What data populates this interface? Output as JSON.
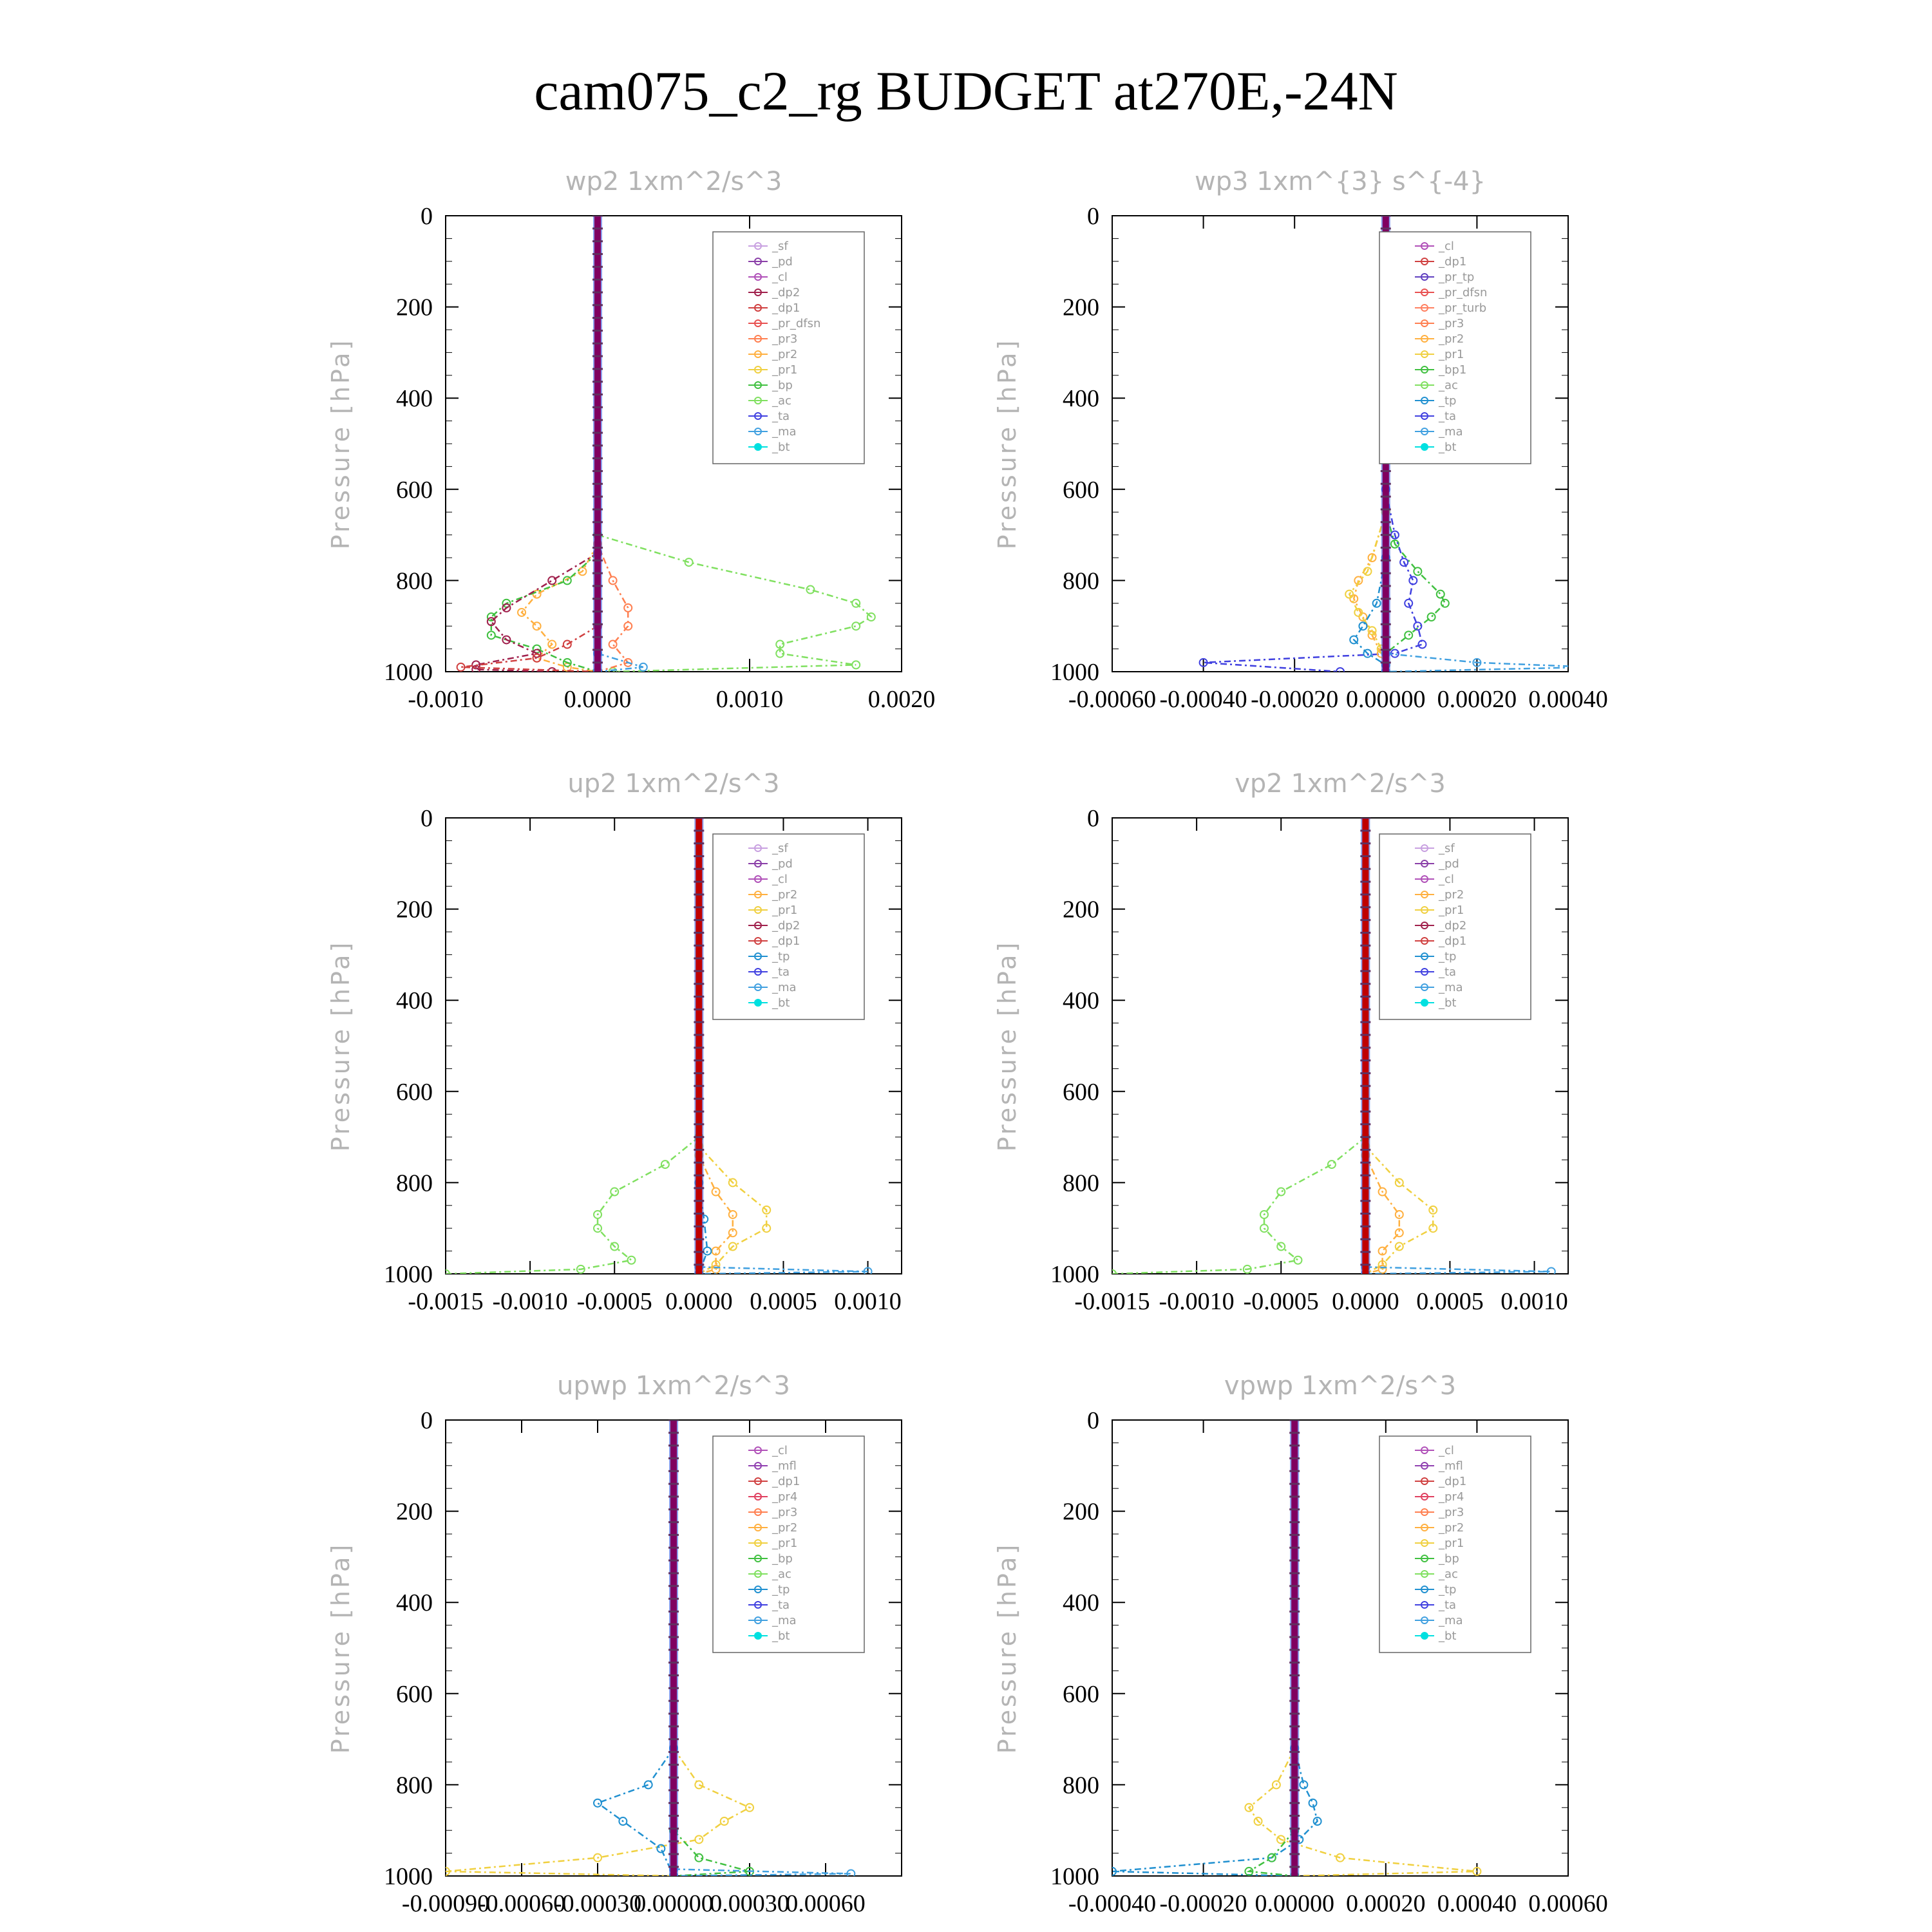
{
  "title": "cam075_c2_rg  BUDGET at270E,-24N",
  "colors": {
    "sf": "#c8a0e0",
    "pd": "#8a3fa8",
    "cl": "#b050b8",
    "dp2": "#a0204c",
    "dp1": "#d04040",
    "pr_dfsn": "#e85050",
    "pr3": "#ff7f50",
    "pr2": "#ffb040",
    "pr1": "#f0d040",
    "bp": "#40c040",
    "ac": "#80e060",
    "tp": "#2090d0",
    "ta": "#4040e0",
    "ma": "#40a0e0",
    "bt": "#00e0e0",
    "mfl": "#9040b0",
    "pr4": "#e04060",
    "pr_tp": "#6040c0",
    "pr_turb": "#ff8060",
    "bp1": "#40c040",
    "thick_line": "#800060",
    "thick_line_red": "#c00000"
  },
  "chart_data": [
    {
      "type": "line",
      "title": "wp2   1xm^2/s^3",
      "ylabel": "Pressure [hPa]",
      "ylim": [
        1000,
        0
      ],
      "xlim": [
        -0.001,
        0.002
      ],
      "x_ticks": [
        "-0.0010",
        "0.0000",
        "0.0010",
        "0.0020"
      ],
      "x_tick_values": [
        -0.001,
        0.0,
        0.001,
        0.002
      ],
      "y_ticks": [
        "0",
        "200",
        "400",
        "600",
        "800",
        "1000"
      ],
      "legend": [
        "_sf",
        "_pd",
        "_cl",
        "_dp2",
        "_dp1",
        "_pr_dfsn",
        "_pr3",
        "_pr2",
        "_pr1",
        "_bp",
        "_ac",
        "_ta",
        "_ma",
        "_bt"
      ],
      "series": [
        {
          "name": "_ac",
          "color_key": "ac",
          "p": [
            700,
            760,
            820,
            850,
            880,
            900,
            940,
            960,
            985,
            1000
          ],
          "x": [
            0.0,
            0.0006,
            0.0014,
            0.0017,
            0.0018,
            0.0017,
            0.0012,
            0.0012,
            0.0017,
            0.0001
          ]
        },
        {
          "name": "_pr2",
          "color_key": "pr2",
          "p": [
            720,
            780,
            830,
            870,
            900,
            940,
            970,
            990,
            1000
          ],
          "x": [
            0.0,
            -0.0001,
            -0.0004,
            -0.0005,
            -0.0004,
            -0.0003,
            -0.0004,
            -0.0002,
            0.0
          ]
        },
        {
          "name": "_pr3",
          "color_key": "pr3",
          "p": [
            720,
            800,
            860,
            900,
            940,
            980,
            1000
          ],
          "x": [
            0.0,
            0.0001,
            0.0002,
            0.0002,
            0.0001,
            0.0002,
            0.0
          ]
        },
        {
          "name": "_bp",
          "color_key": "bp",
          "p": [
            740,
            800,
            850,
            880,
            920,
            950,
            980,
            1000
          ],
          "x": [
            0.0,
            -0.0002,
            -0.0006,
            -0.0007,
            -0.0007,
            -0.0004,
            -0.0002,
            0.0
          ]
        },
        {
          "name": "_dp2",
          "color_key": "dp2",
          "p": [
            740,
            800,
            860,
            890,
            930,
            960,
            985,
            995,
            1000
          ],
          "x": [
            0.0,
            -0.0003,
            -0.0006,
            -0.0007,
            -0.0006,
            -0.0004,
            -0.0008,
            -0.0008,
            -0.0003
          ]
        },
        {
          "name": "_dp1",
          "color_key": "dp1",
          "p": [
            900,
            940,
            970,
            990,
            1000
          ],
          "x": [
            0.0,
            -0.0002,
            -0.0004,
            -0.0009,
            0.0
          ]
        },
        {
          "name": "_ma",
          "color_key": "ma",
          "p": [
            960,
            990,
            1000
          ],
          "x": [
            0.0,
            0.0003,
            0.0
          ]
        }
      ],
      "thick_x": 0.0,
      "thick_color_key": "thick_line"
    },
    {
      "type": "line",
      "title": "wp3   1xm^{3} s^{-4}",
      "ylabel": "Pressure [hPa]",
      "ylim": [
        1000,
        0
      ],
      "xlim": [
        -0.0006,
        0.0004
      ],
      "x_ticks": [
        "-0.00060",
        "-0.00040",
        "-0.00020",
        "0.00000",
        "0.00020",
        "0.00040"
      ],
      "x_tick_values": [
        -0.0006,
        -0.0004,
        -0.0002,
        0.0,
        0.0002,
        0.0004
      ],
      "y_ticks": [
        "0",
        "200",
        "400",
        "600",
        "800",
        "1000"
      ],
      "legend": [
        "_cl",
        "_dp1",
        "_pr_tp",
        "_pr_dfsn",
        "_pr_turb",
        "_pr3",
        "_pr2",
        "_pr1",
        "_bp1",
        "_ac",
        "_tp",
        "_ta",
        "_ma",
        "_bt"
      ],
      "series": [
        {
          "name": "_bp1",
          "color_key": "bp1",
          "p": [
            650,
            720,
            780,
            830,
            850,
            880,
            920,
            960,
            1000
          ],
          "x": [
            0.0,
            2e-05,
            7e-05,
            0.00012,
            0.00013,
            0.0001,
            5e-05,
            0.0,
            0.0
          ]
        },
        {
          "name": "_ta",
          "color_key": "ta",
          "p": [
            600,
            700,
            760,
            800,
            850,
            900,
            940,
            960,
            980,
            1000
          ],
          "x": [
            0.0,
            2e-05,
            4e-05,
            6e-05,
            5e-05,
            7e-05,
            8e-05,
            2e-05,
            -0.0004,
            -0.0001
          ]
        },
        {
          "name": "_pr2",
          "color_key": "pr2",
          "p": [
            650,
            750,
            800,
            840,
            880,
            920,
            960,
            1000
          ],
          "x": [
            0.0,
            -3e-05,
            -6e-05,
            -7e-05,
            -5e-05,
            -3e-05,
            -1e-05,
            0.0
          ]
        },
        {
          "name": "_pr1",
          "color_key": "pr1",
          "p": [
            650,
            780,
            830,
            870,
            910,
            950,
            1000
          ],
          "x": [
            0.0,
            -4e-05,
            -8e-05,
            -6e-05,
            -3e-05,
            -1e-05,
            0.0
          ]
        },
        {
          "name": "_tp",
          "color_key": "tp",
          "p": [
            750,
            850,
            900,
            930,
            960,
            985,
            1000
          ],
          "x": [
            0.0,
            -2e-05,
            -5e-05,
            -7e-05,
            -4e-05,
            0.0,
            0.0
          ]
        },
        {
          "name": "_ma",
          "color_key": "ma",
          "p": [
            960,
            980,
            990,
            1000
          ],
          "x": [
            0.0,
            0.0002,
            0.00045,
            0.0
          ]
        }
      ],
      "thick_x": 0.0,
      "thick_color_key": "thick_line"
    },
    {
      "type": "line",
      "title": "up2   1xm^2/s^3",
      "ylabel": "Pressure [hPa]",
      "ylim": [
        1000,
        0
      ],
      "xlim": [
        -0.0015,
        0.0012
      ],
      "x_ticks": [
        "-0.0015",
        "-0.0010",
        "-0.0005",
        "0.0000",
        "0.0005",
        "0.0010"
      ],
      "x_tick_values": [
        -0.0015,
        -0.001,
        -0.0005,
        0.0,
        0.0005,
        0.001
      ],
      "y_ticks": [
        "0",
        "200",
        "400",
        "600",
        "800",
        "1000"
      ],
      "legend": [
        "_sf",
        "_pd",
        "_cl",
        "_pr2",
        "_pr1",
        "_dp2",
        "_dp1",
        "_tp",
        "_ta",
        "_ma",
        "_bt"
      ],
      "series": [
        {
          "name": "_dp1",
          "color_key": "ac",
          "p": [
            700,
            760,
            820,
            870,
            900,
            940,
            970,
            990,
            1000
          ],
          "x": [
            0.0,
            -0.0002,
            -0.0005,
            -0.0006,
            -0.0006,
            -0.0005,
            -0.0004,
            -0.0007,
            -0.0015
          ]
        },
        {
          "name": "_pr1",
          "color_key": "pr1",
          "p": [
            720,
            800,
            860,
            900,
            940,
            980,
            1000
          ],
          "x": [
            0.0,
            0.0002,
            0.0004,
            0.0004,
            0.0002,
            0.0001,
            0.0
          ]
        },
        {
          "name": "_pr2",
          "color_key": "pr2",
          "p": [
            740,
            820,
            870,
            910,
            950,
            990,
            1000
          ],
          "x": [
            0.0,
            0.0001,
            0.0002,
            0.0002,
            0.0001,
            0.0001,
            0.0
          ]
        },
        {
          "name": "_tp",
          "color_key": "tp",
          "p": [
            800,
            880,
            950,
            1000
          ],
          "x": [
            0.0,
            3e-05,
            5e-05,
            0.0
          ]
        },
        {
          "name": "_ma",
          "color_key": "ma",
          "p": [
            985,
            995,
            1000
          ],
          "x": [
            0.0,
            0.001,
            0.0
          ]
        }
      ],
      "thick_x": 0.0,
      "thick_color_key": "thick_line_red"
    },
    {
      "type": "line",
      "title": "vp2   1xm^2/s^3",
      "ylabel": "Pressure [hPa]",
      "ylim": [
        1000,
        0
      ],
      "xlim": [
        -0.0015,
        0.0012
      ],
      "x_ticks": [
        "-0.0015",
        "-0.0010",
        "-0.0005",
        "0.0000",
        "0.0005",
        "0.0010"
      ],
      "x_tick_values": [
        -0.0015,
        -0.001,
        -0.0005,
        0.0,
        0.0005,
        0.001
      ],
      "y_ticks": [
        "0",
        "200",
        "400",
        "600",
        "800",
        "1000"
      ],
      "legend": [
        "_sf",
        "_pd",
        "_cl",
        "_pr2",
        "_pr1",
        "_dp2",
        "_dp1",
        "_tp",
        "_ta",
        "_ma",
        "_bt"
      ],
      "series": [
        {
          "name": "_dp1",
          "color_key": "ac",
          "p": [
            700,
            760,
            820,
            870,
            900,
            940,
            970,
            990,
            1000
          ],
          "x": [
            0.0,
            -0.0002,
            -0.0005,
            -0.0006,
            -0.0006,
            -0.0005,
            -0.0004,
            -0.0007,
            -0.0015
          ]
        },
        {
          "name": "_pr1",
          "color_key": "pr1",
          "p": [
            720,
            800,
            860,
            900,
            940,
            980,
            1000
          ],
          "x": [
            0.0,
            0.0002,
            0.0004,
            0.0004,
            0.0002,
            0.0001,
            0.0
          ]
        },
        {
          "name": "_pr2",
          "color_key": "pr2",
          "p": [
            740,
            820,
            870,
            910,
            950,
            990,
            1000
          ],
          "x": [
            0.0,
            0.0001,
            0.0002,
            0.0002,
            0.0001,
            0.0001,
            0.0
          ]
        },
        {
          "name": "_ma",
          "color_key": "ma",
          "p": [
            985,
            995,
            1000
          ],
          "x": [
            0.0,
            0.0011,
            0.0
          ]
        }
      ],
      "thick_x": 0.0,
      "thick_color_key": "thick_line_red"
    },
    {
      "type": "line",
      "title": "upwp   1xm^2/s^3",
      "ylabel": "Pressure [hPa]",
      "ylim": [
        1000,
        0
      ],
      "xlim": [
        -0.0009,
        0.0009
      ],
      "x_ticks": [
        "-0.00090",
        "-0.00060",
        "-0.00030",
        "0.00000",
        "0.00030",
        "0.00060"
      ],
      "x_tick_values": [
        -0.0009,
        -0.0006,
        -0.0003,
        0.0,
        0.0003,
        0.0006
      ],
      "y_ticks": [
        "0",
        "200",
        "400",
        "600",
        "800",
        "1000"
      ],
      "legend": [
        "_cl",
        "_mfl",
        "_dp1",
        "_pr4",
        "_pr3",
        "_pr2",
        "_pr1",
        "_bp",
        "_ac",
        "_tp",
        "_ta",
        "_ma",
        "_bt"
      ],
      "series": [
        {
          "name": "_pr1",
          "color_key": "pr1",
          "p": [
            720,
            800,
            850,
            880,
            920,
            960,
            990,
            1000
          ],
          "x": [
            0.0,
            0.0001,
            0.0003,
            0.0002,
            0.0001,
            -0.0003,
            -0.0009,
            0.0
          ]
        },
        {
          "name": "_tp",
          "color_key": "tp",
          "p": [
            720,
            800,
            840,
            880,
            940,
            1000
          ],
          "x": [
            0.0,
            -0.0001,
            -0.0003,
            -0.0002,
            -5e-05,
            0.0
          ]
        },
        {
          "name": "_bp",
          "color_key": "bp",
          "p": [
            900,
            960,
            990,
            1000
          ],
          "x": [
            0.0,
            0.0001,
            0.0003,
            0.0
          ]
        },
        {
          "name": "_ma",
          "color_key": "ma",
          "p": [
            985,
            995,
            1000
          ],
          "x": [
            0.0,
            0.0007,
            0.0
          ]
        }
      ],
      "thick_x": 0.0,
      "thick_color_key": "thick_line"
    },
    {
      "type": "line",
      "title": "vpwp   1xm^2/s^3",
      "ylabel": "Pressure [hPa]",
      "ylim": [
        1000,
        0
      ],
      "xlim": [
        -0.0004,
        0.0006
      ],
      "x_ticks": [
        "-0.00040",
        "-0.00020",
        "0.00000",
        "0.00020",
        "0.00040",
        "0.00060"
      ],
      "x_tick_values": [
        -0.0004,
        -0.0002,
        0.0,
        0.0002,
        0.0004,
        0.0006
      ],
      "y_ticks": [
        "0",
        "200",
        "400",
        "600",
        "800",
        "1000"
      ],
      "legend": [
        "_cl",
        "_mfl",
        "_dp1",
        "_pr4",
        "_pr3",
        "_pr2",
        "_pr1",
        "_bp",
        "_ac",
        "_tp",
        "_ta",
        "_ma",
        "_bt"
      ],
      "series": [
        {
          "name": "_pr1",
          "color_key": "pr1",
          "p": [
            720,
            800,
            850,
            880,
            920,
            960,
            990,
            1000
          ],
          "x": [
            0.0,
            -4e-05,
            -0.0001,
            -8e-05,
            -3e-05,
            0.0001,
            0.0004,
            0.0
          ]
        },
        {
          "name": "_tp",
          "color_key": "tp",
          "p": [
            720,
            800,
            840,
            880,
            920,
            960,
            990,
            1000
          ],
          "x": [
            0.0,
            2e-05,
            4e-05,
            5e-05,
            1e-05,
            -5e-05,
            -0.0004,
            0.0
          ]
        },
        {
          "name": "_bp",
          "color_key": "bp",
          "p": [
            900,
            960,
            990,
            1000
          ],
          "x": [
            0.0,
            -5e-05,
            -0.0001,
            0.0
          ]
        }
      ],
      "thick_x": 0.0,
      "thick_color_key": "thick_line"
    }
  ]
}
